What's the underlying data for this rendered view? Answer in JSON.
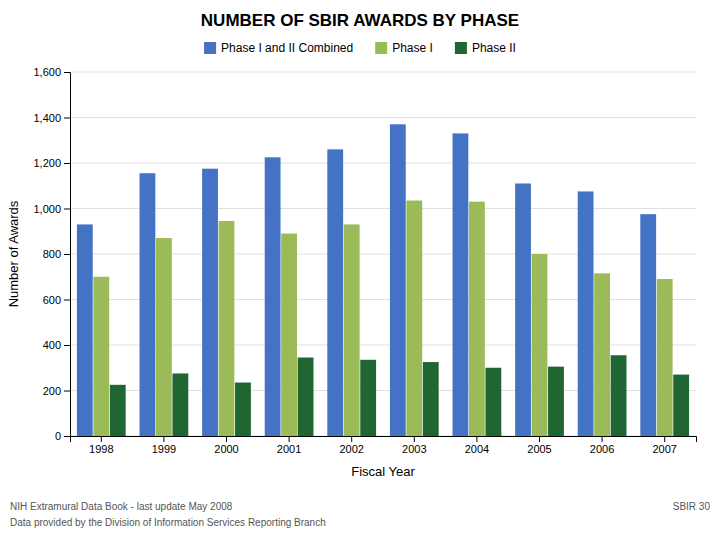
{
  "chart_data": {
    "type": "bar",
    "title": "NUMBER OF SBIR AWARDS BY PHASE",
    "x_label": "Fiscal Year",
    "y_label": "Number of Awards",
    "categories": [
      "1998",
      "1999",
      "2000",
      "2001",
      "2002",
      "2003",
      "2004",
      "2005",
      "2006",
      "2007"
    ],
    "series": [
      {
        "name": "Phase I and II Combined",
        "color": "#4472C4",
        "values": [
          930,
          1155,
          1175,
          1225,
          1260,
          1370,
          1330,
          1110,
          1075,
          975
        ]
      },
      {
        "name": "Phase I",
        "color": "#9BBB59",
        "values": [
          700,
          870,
          945,
          890,
          930,
          1035,
          1030,
          800,
          715,
          690
        ]
      },
      {
        "name": "Phase II",
        "color": "#1F6633",
        "values": [
          225,
          275,
          235,
          345,
          335,
          325,
          300,
          305,
          355,
          270
        ]
      }
    ],
    "ylim": [
      0,
      1600
    ],
    "yticks": [
      0,
      200,
      400,
      600,
      800,
      {
        "value": 1000,
        "label": "1,000"
      },
      {
        "value": 1200,
        "label": "1,200"
      },
      {
        "value": 1400,
        "label": "1,400"
      },
      {
        "value": 1600,
        "label": "1,600"
      }
    ],
    "grid": true,
    "legend": "top",
    "annotations": [
      "NIH Extramural Data Book - last update May 2008",
      "Data provided by the Division of Information Services  Reporting Branch",
      "SBIR 30"
    ]
  }
}
